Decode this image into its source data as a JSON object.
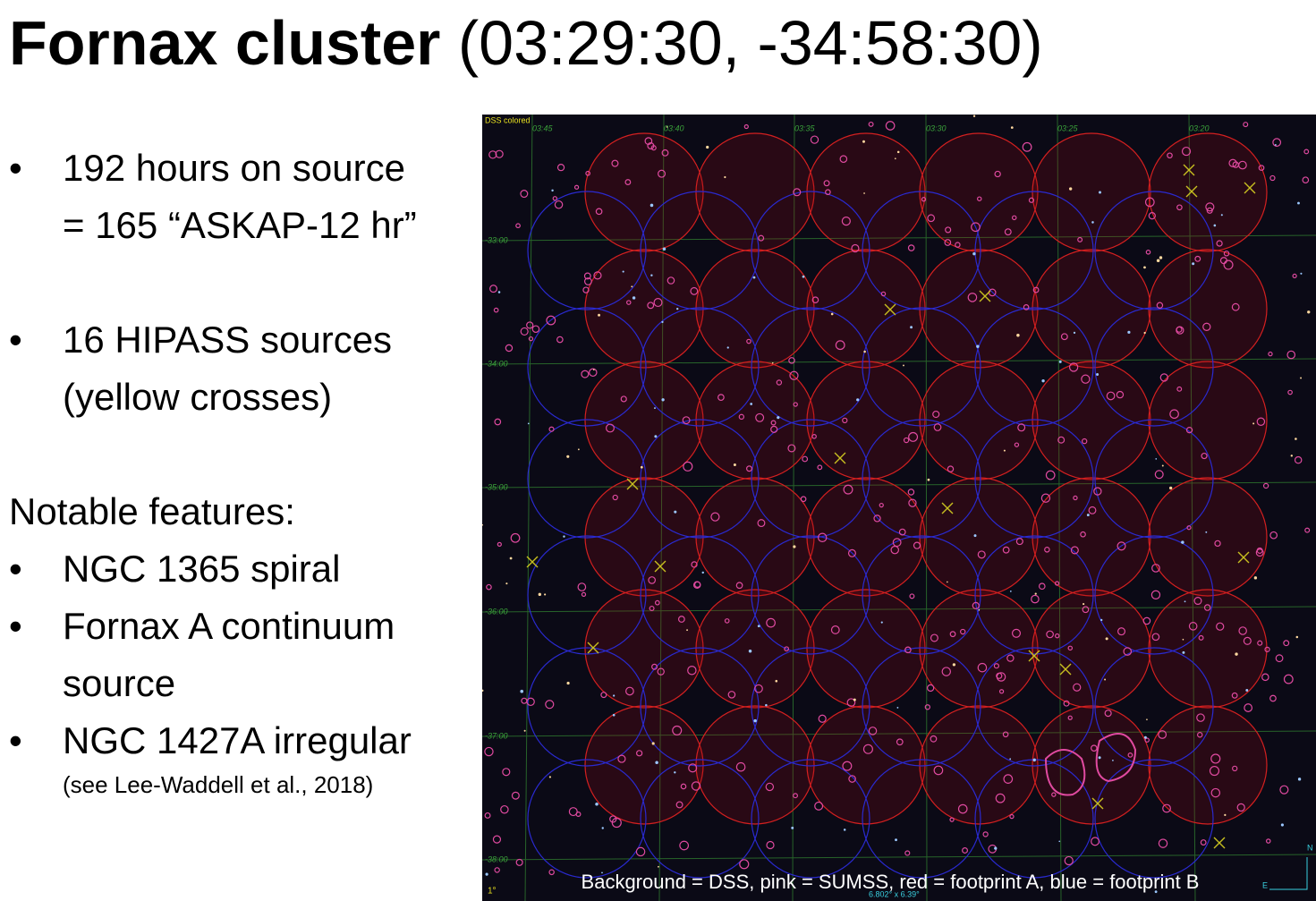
{
  "title": {
    "bold": "Fornax cluster",
    "coords": "(03:29:30, -34:58:30)"
  },
  "bullets": [
    {
      "lines": [
        "192 hours on source",
        "= 165 “ASKAP-12 hr”"
      ]
    },
    {
      "lines": [
        "16 HIPASS sources",
        "(yellow crosses)"
      ]
    }
  ],
  "features": {
    "heading": "Notable features:",
    "items": [
      {
        "lines": [
          "NGC 1365 spiral"
        ]
      },
      {
        "lines": [
          "Fornax A continuum",
          "source"
        ]
      },
      {
        "lines": [
          "NGC 1427A irregular"
        ],
        "note": "(see Lee-Waddell et al., 2018)"
      }
    ]
  },
  "image": {
    "survey": "DSS colored",
    "ra_labels": [
      "03:45",
      "03:40",
      "03:35",
      "03:30",
      "03:25",
      "03:20"
    ],
    "dec_labels": [
      "-33:00",
      "-34:00",
      "-35:00",
      "-36:00",
      "-37:00",
      "-38:00"
    ],
    "scale": "1°",
    "fov": "6.802° x 6.39°",
    "north": "N",
    "east": "E",
    "caption": "Background = DSS, pink = SUMSS, red = footprint A, blue = footprint B"
  }
}
